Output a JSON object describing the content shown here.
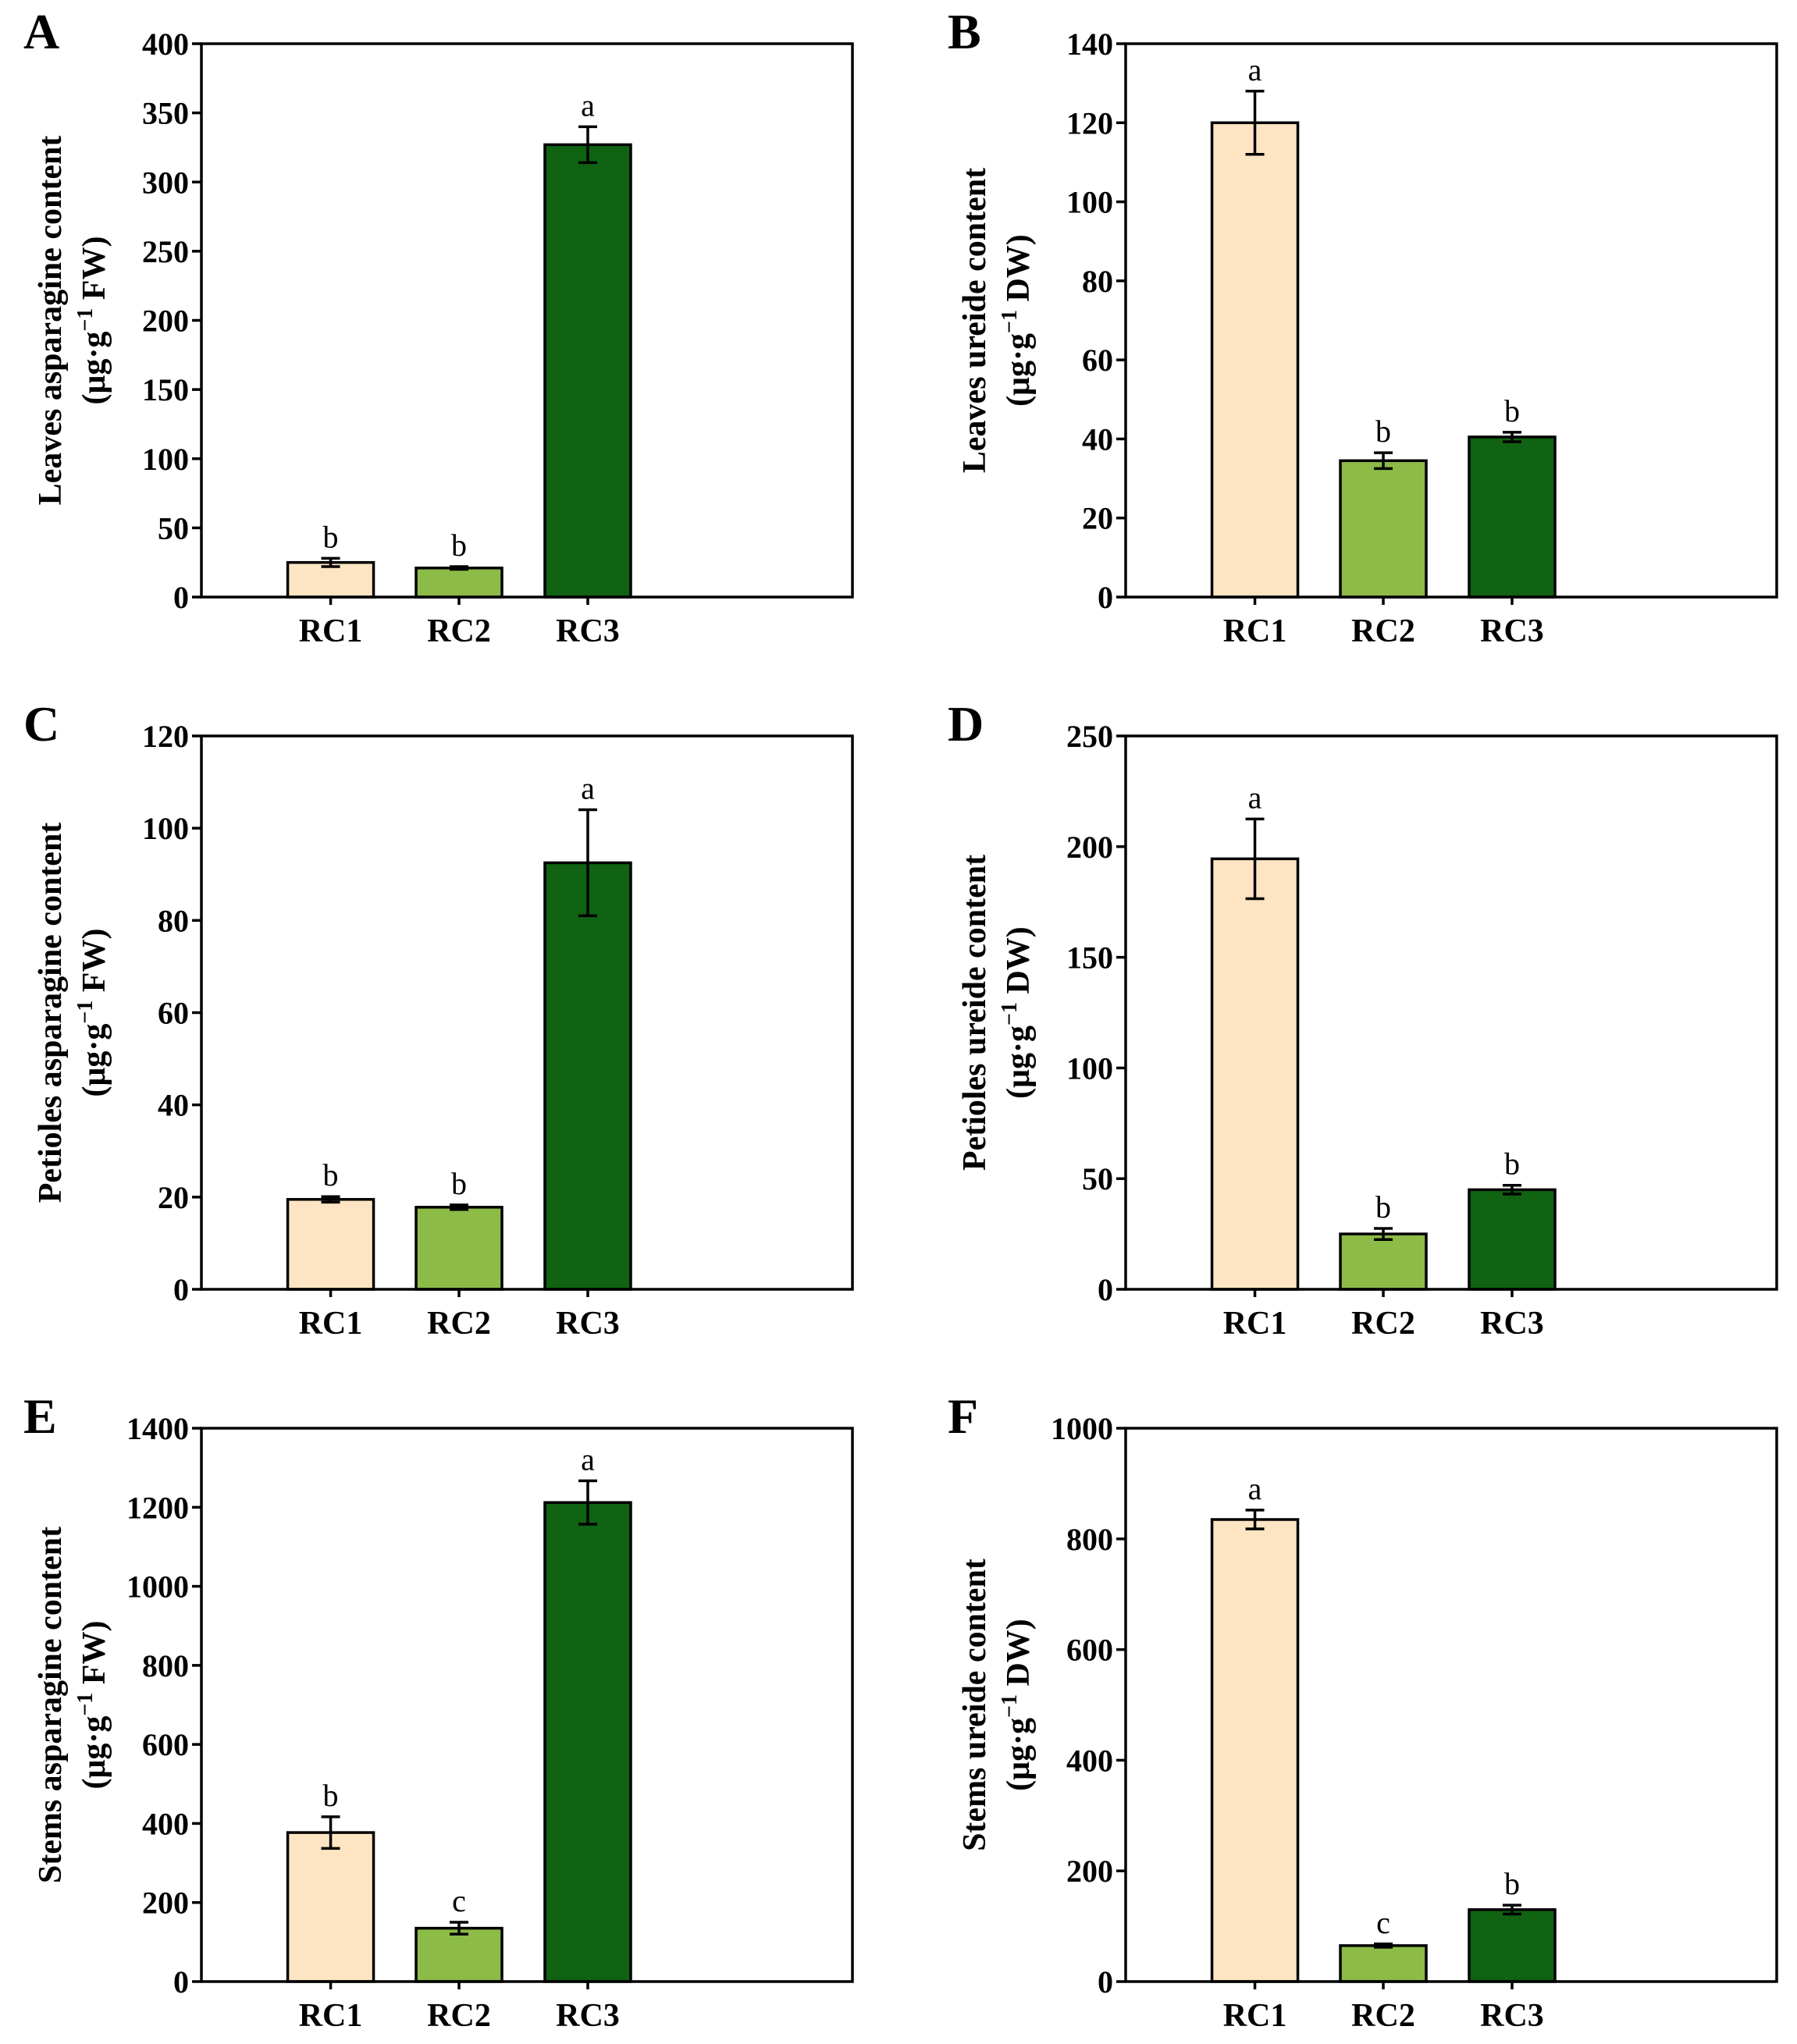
{
  "colors": {
    "RC1": "#FDE5C3",
    "RC2": "#8CBB47",
    "RC3": "#0F6312"
  },
  "chart_data": [
    {
      "type": "bar",
      "panel": "A",
      "ylabel_line1": "Leaves asparagine content",
      "ylabel_unit_pre": "(μg·g",
      "ylabel_unit_sup": "−1",
      "ylabel_unit_post": " FW)",
      "categories": [
        "RC1",
        "RC2",
        "RC3"
      ],
      "values": [
        25,
        21,
        327
      ],
      "errors": [
        3,
        1,
        13
      ],
      "labels": [
        "b",
        "b",
        "a"
      ],
      "ylim": [
        0,
        400
      ],
      "yticks": [
        0,
        50,
        100,
        150,
        200,
        250,
        300,
        350,
        400
      ]
    },
    {
      "type": "bar",
      "panel": "B",
      "ylabel_line1": "Leaves ureide content",
      "ylabel_unit_pre": "(μg·g",
      "ylabel_unit_sup": "−1",
      "ylabel_unit_post": " DW)",
      "categories": [
        "RC1",
        "RC2",
        "RC3"
      ],
      "values": [
        120,
        34.5,
        40.5
      ],
      "errors": [
        8,
        2,
        1.2
      ],
      "labels": [
        "a",
        "b",
        "b"
      ],
      "ylim": [
        0,
        140
      ],
      "yticks": [
        0,
        20,
        40,
        60,
        80,
        100,
        120,
        140
      ]
    },
    {
      "type": "bar",
      "panel": "C",
      "ylabel_line1": "Petioles asparagine content",
      "ylabel_unit_pre": "(μg·g",
      "ylabel_unit_sup": "−1",
      "ylabel_unit_post": " FW)",
      "categories": [
        "RC1",
        "RC2",
        "RC3"
      ],
      "values": [
        19.5,
        17.8,
        92.5
      ],
      "errors": [
        0.6,
        0.5,
        11.5
      ],
      "labels": [
        "b",
        "b",
        "a"
      ],
      "ylim": [
        0,
        120
      ],
      "yticks": [
        0,
        20,
        40,
        60,
        80,
        100,
        120
      ]
    },
    {
      "type": "bar",
      "panel": "D",
      "ylabel_line1": "Petioles ureide content",
      "ylabel_unit_pre": "(μg·g",
      "ylabel_unit_sup": "−1",
      "ylabel_unit_post": " DW)",
      "categories": [
        "RC1",
        "RC2",
        "RC3"
      ],
      "values": [
        194.5,
        25,
        45
      ],
      "errors": [
        18,
        2.5,
        2
      ],
      "labels": [
        "a",
        "b",
        "b"
      ],
      "ylim": [
        0,
        250
      ],
      "yticks": [
        0,
        50,
        100,
        150,
        200,
        250
      ]
    },
    {
      "type": "bar",
      "panel": "E",
      "ylabel_line1": "Stems asparagine content",
      "ylabel_unit_pre": "(μg·g",
      "ylabel_unit_sup": "−1",
      "ylabel_unit_post": " FW)",
      "categories": [
        "RC1",
        "RC2",
        "RC3"
      ],
      "values": [
        377,
        135,
        1212
      ],
      "errors": [
        40,
        15,
        55
      ],
      "labels": [
        "b",
        "c",
        "a"
      ],
      "ylim": [
        0,
        1400
      ],
      "yticks": [
        0,
        200,
        400,
        600,
        800,
        1000,
        1200,
        1400
      ]
    },
    {
      "type": "bar",
      "panel": "F",
      "ylabel_line1": "Stems ureide content",
      "ylabel_unit_pre": "(μg·g",
      "ylabel_unit_sup": "−1",
      "ylabel_unit_post": " DW)",
      "categories": [
        "RC1",
        "RC2",
        "RC3"
      ],
      "values": [
        835,
        65,
        130
      ],
      "errors": [
        17,
        3,
        8
      ],
      "labels": [
        "a",
        "c",
        "b"
      ],
      "ylim": [
        0,
        1000
      ],
      "yticks": [
        0,
        200,
        400,
        600,
        800,
        1000
      ]
    }
  ]
}
